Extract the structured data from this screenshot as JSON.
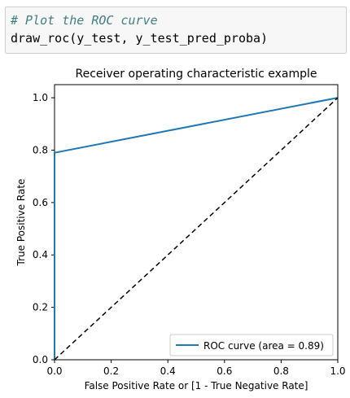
{
  "code_cell": {
    "comment": "# Plot the ROC curve",
    "call": "draw_roc(y_test, y_test_pred_proba)"
  },
  "chart_data": {
    "type": "line",
    "title": "Receiver operating characteristic example",
    "xlabel": "False Positive Rate or [1 - True Negative Rate]",
    "ylabel": "True Positive Rate",
    "xlim": [
      0.0,
      1.0
    ],
    "ylim": [
      0.0,
      1.05
    ],
    "x_ticks": [
      "0.0",
      "0.2",
      "0.4",
      "0.6",
      "0.8",
      "1.0"
    ],
    "y_ticks": [
      "0.0",
      "0.2",
      "0.4",
      "0.6",
      "0.8",
      "1.0"
    ],
    "grid": false,
    "legend_position": "lower-right",
    "series": [
      {
        "name": "ROC curve (area = 0.89)",
        "x": [
          0.0,
          0.0,
          1.0
        ],
        "y": [
          0.0,
          0.79,
          1.0
        ],
        "color": "#1f77b4",
        "style": "solid"
      },
      {
        "x": [
          0.0,
          1.0
        ],
        "y": [
          0.0,
          1.0
        ],
        "color": "#000000",
        "style": "dashed"
      }
    ]
  }
}
